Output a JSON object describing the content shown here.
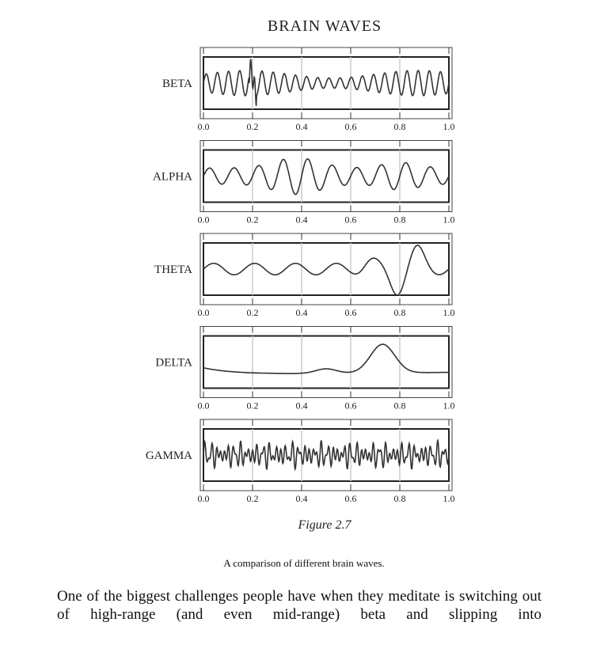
{
  "figure": {
    "title": "BRAIN WAVES",
    "panels": [
      {
        "label": "BETA"
      },
      {
        "label": "ALPHA"
      },
      {
        "label": "THETA"
      },
      {
        "label": "DELTA"
      },
      {
        "label": "GAMMA"
      }
    ],
    "axis_ticks": [
      "0.0",
      "0.2",
      "0.4",
      "0.6",
      "0.8",
      "1.0"
    ],
    "figure_label": "Figure 2.7"
  },
  "caption": "A comparison of different brain waves.",
  "body": {
    "paragraph": "One of the biggest challenges people have when they meditate is switching out of high-range (and even mid-range) beta and slipping into"
  }
}
